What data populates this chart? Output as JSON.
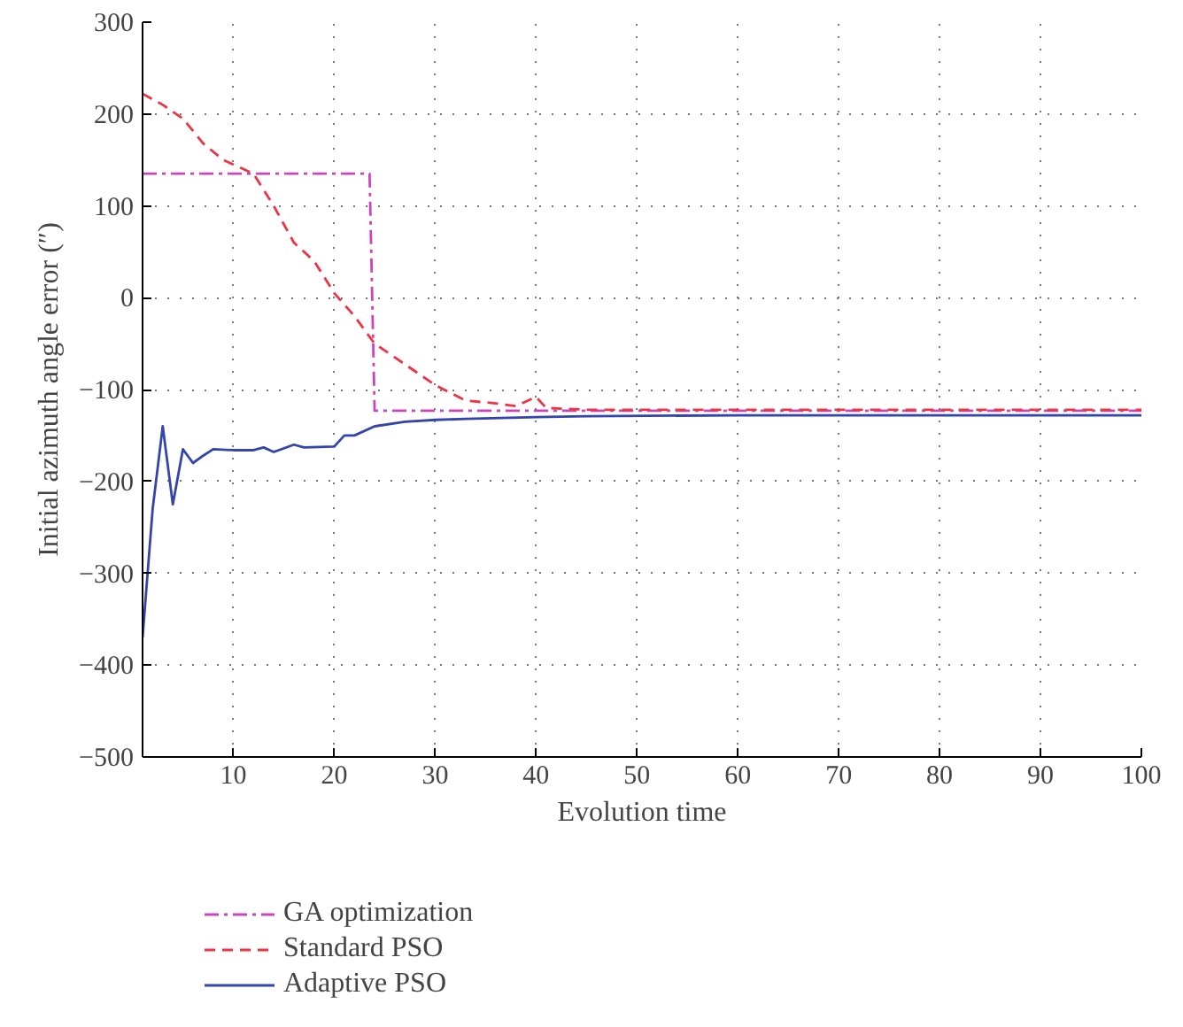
{
  "chart_data": {
    "type": "line",
    "xlabel": "Evolution time",
    "ylabel": "Initial azimuth angle error (″)",
    "xlim": [
      1,
      100
    ],
    "ylim": [
      -500,
      300
    ],
    "xticks": [
      10,
      20,
      30,
      40,
      50,
      60,
      70,
      80,
      90,
      100
    ],
    "yticks": [
      -500,
      -400,
      -300,
      -200,
      -100,
      0,
      100,
      200,
      300
    ],
    "grid": true,
    "legend": "bottom",
    "series": [
      {
        "name": "GA optimization",
        "color": "#cc44bb",
        "line_style": "dashdot",
        "x": [
          1,
          23.5,
          24,
          100
        ],
        "values": [
          135,
          135,
          -123,
          -123
        ]
      },
      {
        "name": "Standard PSO",
        "color": "#ee3344",
        "line_style": "dashed",
        "x": [
          1,
          3,
          5,
          7,
          9,
          11,
          12,
          14,
          16,
          18,
          20,
          22,
          24,
          26,
          28,
          30,
          33,
          36,
          38,
          40,
          41,
          45,
          100
        ],
        "values": [
          222,
          210,
          195,
          168,
          150,
          140,
          135,
          100,
          60,
          40,
          5,
          -20,
          -50,
          -65,
          -80,
          -95,
          -112,
          -115,
          -118,
          -108,
          -120,
          -122,
          -122
        ]
      },
      {
        "name": "Adaptive PSO",
        "color": "#3344aa",
        "line_style": "solid",
        "x": [
          1,
          2,
          3,
          4,
          5,
          6,
          7,
          8,
          10,
          12,
          13,
          14,
          16,
          17,
          20,
          21,
          22,
          24,
          27,
          30,
          33,
          40,
          45,
          60,
          100
        ],
        "values": [
          -370,
          -230,
          -140,
          -225,
          -165,
          -180,
          -172,
          -165,
          -166,
          -166,
          -163,
          -168,
          -160,
          -163,
          -162,
          -150,
          -150,
          -140,
          -135,
          -133,
          -132,
          -130,
          -129,
          -128,
          -128
        ]
      }
    ]
  }
}
